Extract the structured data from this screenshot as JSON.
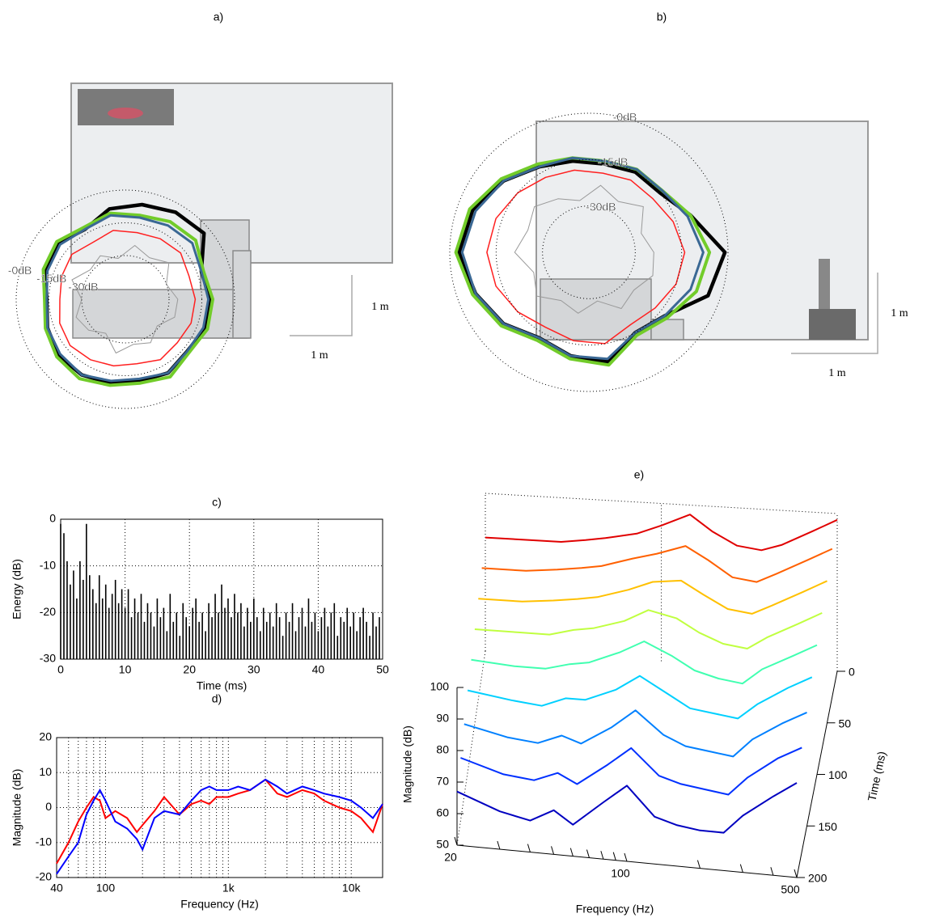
{
  "chart_data": [
    {
      "type": "polar",
      "title": "a)",
      "theta": [
        0,
        20,
        40,
        60,
        80,
        100,
        120,
        140,
        160,
        180,
        200,
        220,
        240,
        260,
        280,
        300,
        320,
        340
      ],
      "rlim": [
        -50,
        0
      ],
      "rticks": [
        {
          "value": 0,
          "label": "-0dB"
        },
        {
          "value": -15,
          "label": "-15dB"
        },
        {
          "value": -30,
          "label": "-30dB"
        }
      ],
      "series": [
        {
          "color": "#000000",
          "values": [
            -11,
            -13,
            -3,
            -4,
            -6,
            -8,
            -13,
            -10,
            -11,
            -14,
            -12,
            -10,
            -10,
            -11,
            -12,
            -11,
            -13,
            -11
          ]
        },
        {
          "color": "#72cc2a",
          "values": [
            -10,
            -12,
            -8,
            -9,
            -11,
            -10,
            -12,
            -9,
            -10,
            -13,
            -11,
            -9,
            -8,
            -10,
            -11,
            -9,
            -12,
            -10
          ]
        },
        {
          "color": "#3a6894",
          "values": [
            -12,
            -13,
            -10,
            -11,
            -12,
            -11,
            -13,
            -11,
            -12,
            -14,
            -12,
            -11,
            -10,
            -12,
            -13,
            -11,
            -13,
            -12
          ]
        },
        {
          "color": "#ff2020",
          "values": [
            -18,
            -19,
            -17,
            -18,
            -19,
            -18,
            -20,
            -18,
            -19,
            -20,
            -18,
            -17,
            -18,
            -19,
            -20,
            -18,
            -19,
            -18
          ]
        },
        {
          "color": "#999999",
          "values": [
            -26,
            -30,
            -24,
            -28,
            -25,
            -31,
            -27,
            -29,
            -24,
            -30,
            -26,
            -28,
            -32,
            -25,
            -29,
            -27,
            -31,
            -26
          ]
        }
      ],
      "scale_labels": [
        "1 m",
        "1 m"
      ]
    },
    {
      "type": "polar",
      "title": "b)",
      "theta": [
        0,
        20,
        40,
        60,
        80,
        100,
        120,
        140,
        160,
        180,
        200,
        220,
        240,
        260,
        280,
        300,
        320,
        340
      ],
      "rlim": [
        -45,
        0
      ],
      "rticks": [
        {
          "value": 0,
          "label": "-0dB"
        },
        {
          "value": -15,
          "label": "-15dB"
        },
        {
          "value": -30,
          "label": "-30dB"
        }
      ],
      "series": [
        {
          "color": "#000000",
          "values": [
            -1,
            -10,
            -15,
            -15,
            -16,
            -15,
            -13,
            -9,
            -5,
            -3,
            -6,
            -9,
            -13,
            -11,
            -9,
            -15,
            -13,
            -4
          ]
        },
        {
          "color": "#72cc2a",
          "values": [
            -6,
            -10,
            -14,
            -14,
            -15,
            -14,
            -12,
            -8,
            -4,
            -2,
            -5,
            -8,
            -12,
            -10,
            -8,
            -14,
            -12,
            -8
          ]
        },
        {
          "color": "#3a6894",
          "values": [
            -8,
            -11,
            -14,
            -14,
            -15,
            -14,
            -13,
            -9,
            -6,
            -4,
            -6,
            -9,
            -13,
            -11,
            -10,
            -15,
            -13,
            -10
          ]
        },
        {
          "color": "#ff2020",
          "values": [
            -14,
            -16,
            -18,
            -18,
            -19,
            -18,
            -17,
            -15,
            -13,
            -12,
            -13,
            -15,
            -17,
            -16,
            -15,
            -18,
            -17,
            -15
          ]
        },
        {
          "color": "#999999",
          "values": [
            -24,
            -27,
            -22,
            -26,
            -23,
            -28,
            -25,
            -22,
            -24,
            -21,
            -26,
            -23,
            -27,
            -25,
            -29,
            -24,
            -26,
            -23
          ]
        }
      ],
      "scale_labels": [
        "1 m",
        "1 m"
      ]
    },
    {
      "type": "stem",
      "title": "c)",
      "xlabel": "Time (ms)",
      "ylabel": "Energy (dB)",
      "color": "#000000",
      "x": [
        0,
        0.5,
        1,
        1.5,
        2,
        2.5,
        3,
        3.5,
        4,
        4.5,
        5,
        5.5,
        6,
        6.5,
        7,
        7.5,
        8,
        8.5,
        9,
        9.5,
        10,
        10.5,
        11,
        11.5,
        12,
        12.5,
        13,
        13.5,
        14,
        14.5,
        15,
        15.5,
        16,
        16.5,
        17,
        17.5,
        18,
        18.5,
        19,
        19.5,
        20,
        20.5,
        21,
        21.5,
        22,
        22.5,
        23,
        23.5,
        24,
        24.5,
        25,
        25.5,
        26,
        26.5,
        27,
        27.5,
        28,
        28.5,
        29,
        29.5,
        30,
        30.5,
        31,
        31.5,
        32,
        32.5,
        33,
        33.5,
        34,
        34.5,
        35,
        35.5,
        36,
        36.5,
        37,
        37.5,
        38,
        38.5,
        39,
        39.5,
        40,
        40.5,
        41,
        41.5,
        42,
        42.5,
        43,
        43.5,
        44,
        44.5,
        45,
        45.5,
        46,
        46.5,
        47,
        47.5,
        48,
        48.5,
        49,
        49.5
      ],
      "values": [
        -1,
        -3,
        -9,
        -14,
        -11,
        -17,
        -9,
        -13,
        -1,
        -12,
        -15,
        -18,
        -12,
        -17,
        -14,
        -19,
        -16,
        -13,
        -18,
        -15,
        -19,
        -15,
        -21,
        -17,
        -20,
        -16,
        -22,
        -18,
        -20,
        -23,
        -17,
        -21,
        -19,
        -24,
        -16,
        -22,
        -20,
        -25,
        -18,
        -21,
        -23,
        -19,
        -17,
        -22,
        -20,
        -24,
        -18,
        -21,
        -16,
        -20,
        -14,
        -19,
        -17,
        -21,
        -16,
        -20,
        -18,
        -23,
        -19,
        -22,
        -17,
        -21,
        -24,
        -19,
        -22,
        -20,
        -23,
        -18,
        -21,
        -25,
        -20,
        -22,
        -18,
        -24,
        -21,
        -19,
        -23,
        -17,
        -22,
        -20,
        -24,
        -21,
        -19,
        -23,
        -20,
        -18,
        -25,
        -21,
        -22,
        -19,
        -23,
        -20,
        -24,
        -21,
        -19,
        -22,
        -25,
        -20,
        -23,
        -21
      ],
      "xlim": [
        0,
        50
      ],
      "ylim": [
        -30,
        0
      ],
      "xticks": [
        0,
        10,
        20,
        30,
        40,
        50
      ],
      "yticks": [
        -30,
        -20,
        -10,
        0
      ],
      "grid": true
    },
    {
      "type": "line",
      "title": "d)",
      "xlabel": "Frequency (Hz)",
      "ylabel": "Magnitude (dB)",
      "log_x": true,
      "x": [
        40,
        50,
        60,
        70,
        80,
        90,
        100,
        120,
        150,
        180,
        200,
        250,
        300,
        400,
        500,
        600,
        700,
        800,
        1000,
        1200,
        1500,
        2000,
        2500,
        3000,
        4000,
        5000,
        6000,
        8000,
        10000,
        12000,
        15000,
        18000
      ],
      "series": [
        {
          "color": "#ff0000",
          "values": [
            -16,
            -10,
            -4,
            0,
            3,
            2,
            -3,
            -1,
            -3,
            -7,
            -5,
            -1,
            3,
            -2,
            1,
            2,
            1,
            3,
            3,
            4,
            5,
            8,
            4,
            3,
            5,
            4,
            2,
            0,
            -1,
            -3,
            -7,
            1
          ]
        },
        {
          "color": "#0000ff",
          "values": [
            -19,
            -14,
            -10,
            -2,
            2,
            5,
            2,
            -4,
            -6,
            -9,
            -12,
            -3,
            -1,
            -2,
            2,
            5,
            6,
            5,
            5,
            6,
            5,
            8,
            6,
            4,
            6,
            5,
            4,
            3,
            2,
            0,
            -3,
            1
          ]
        }
      ],
      "xlim": [
        40,
        18000
      ],
      "ylim": [
        -20,
        20
      ],
      "xticks": [
        40,
        100,
        {
          "value": 1000,
          "label": "1k"
        },
        {
          "value": 10000,
          "label": "10k"
        }
      ],
      "xminorticks": [
        50,
        60,
        70,
        80,
        90,
        200,
        300,
        400,
        500,
        600,
        700,
        800,
        900,
        2000,
        3000,
        4000,
        5000,
        6000,
        7000,
        8000,
        9000
      ],
      "yticks": [
        -20,
        -10,
        0,
        10,
        20
      ],
      "grid": true
    },
    {
      "type": "waterfall",
      "title": "e)",
      "xlabel": "Frequency (Hz)",
      "ylabel": "Magnitude (dB)",
      "zlabel": "Time (ms)",
      "log_x": true,
      "x": [
        20,
        30,
        40,
        50,
        60,
        80,
        100,
        130,
        160,
        200,
        250,
        300,
        400,
        500
      ],
      "xlim": [
        20,
        500
      ],
      "xticks": [
        20,
        100,
        500
      ],
      "xminorticks": [
        30,
        40,
        50,
        60,
        70,
        80,
        90,
        200,
        300,
        400
      ],
      "ylim": [
        50,
        100
      ],
      "yticks": [
        50,
        60,
        70,
        80,
        90,
        100
      ],
      "zlim": [
        0,
        200
      ],
      "zticks": [
        0,
        50,
        100,
        150,
        200
      ],
      "series": [
        {
          "time": 0,
          "color": "#e00000",
          "values": [
            86,
            86,
            86,
            87,
            88,
            90,
            93,
            97,
            92,
            88,
            87,
            89,
            94,
            98
          ]
        },
        {
          "time": 25,
          "color": "#ff6000",
          "values": [
            84,
            84,
            85,
            86,
            87,
            90,
            92,
            95,
            91,
            86,
            85,
            88,
            93,
            97
          ]
        },
        {
          "time": 50,
          "color": "#ffc000",
          "values": [
            82,
            82,
            83,
            84,
            85,
            88,
            91,
            92,
            88,
            84,
            83,
            86,
            91,
            95
          ]
        },
        {
          "time": 75,
          "color": "#c0ff40",
          "values": [
            80,
            80,
            80,
            82,
            83,
            86,
            90,
            88,
            84,
            81,
            80,
            84,
            89,
            93
          ]
        },
        {
          "time": 100,
          "color": "#40ffb0",
          "values": [
            78,
            77,
            77,
            79,
            80,
            84,
            88,
            84,
            80,
            78,
            77,
            82,
            87,
            91
          ]
        },
        {
          "time": 125,
          "color": "#00d0ff",
          "values": [
            76,
            74,
            73,
            76,
            76,
            80,
            85,
            80,
            76,
            75,
            74,
            79,
            85,
            89
          ]
        },
        {
          "time": 150,
          "color": "#0080ff",
          "values": [
            73,
            70,
            69,
            72,
            70,
            76,
            82,
            75,
            72,
            71,
            70,
            76,
            82,
            86
          ]
        },
        {
          "time": 175,
          "color": "#0030ff",
          "values": [
            70,
            66,
            65,
            68,
            65,
            72,
            78,
            70,
            68,
            67,
            66,
            72,
            79,
            83
          ]
        },
        {
          "time": 200,
          "color": "#0000c0",
          "values": [
            67,
            62,
            60,
            64,
            60,
            68,
            74,
            65,
            63,
            62,
            62,
            68,
            75,
            80
          ]
        }
      ]
    }
  ]
}
